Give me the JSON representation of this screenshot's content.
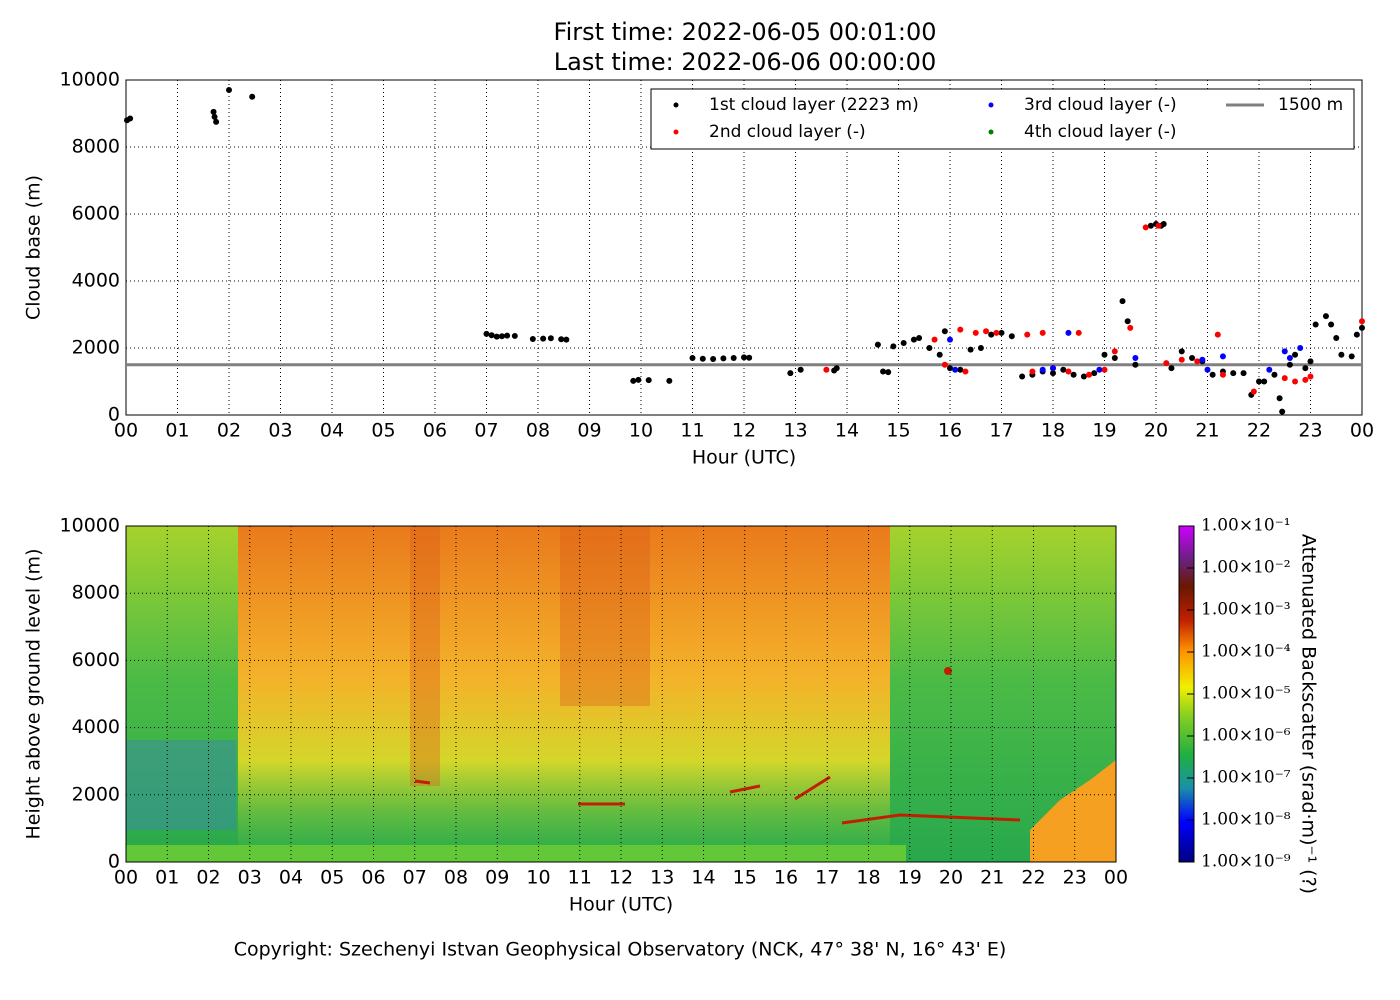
{
  "chart_data": [
    {
      "type": "scatter",
      "title": "First time: 2022-06-05 00:01:00",
      "subtitle": "Last time: 2022-06-06 00:00:00",
      "x_label": "Hour (UTC)",
      "y_label": "Cloud base (m)",
      "xlim": [
        0,
        24
      ],
      "ylim": [
        0,
        10000
      ],
      "xticks": [
        {
          "value": 0,
          "label": "00"
        },
        {
          "value": 1,
          "label": "01"
        },
        {
          "value": 2,
          "label": "02"
        },
        {
          "value": 3,
          "label": "03"
        },
        {
          "value": 4,
          "label": "04"
        },
        {
          "value": 5,
          "label": "05"
        },
        {
          "value": 6,
          "label": "06"
        },
        {
          "value": 7,
          "label": "07"
        },
        {
          "value": 8,
          "label": "08"
        },
        {
          "value": 9,
          "label": "09"
        },
        {
          "value": 10,
          "label": "10"
        },
        {
          "value": 11,
          "label": "11"
        },
        {
          "value": 12,
          "label": "12"
        },
        {
          "value": 13,
          "label": "13"
        },
        {
          "value": 14,
          "label": "14"
        },
        {
          "value": 15,
          "label": "15"
        },
        {
          "value": 16,
          "label": "16"
        },
        {
          "value": 17,
          "label": "17"
        },
        {
          "value": 18,
          "label": "18"
        },
        {
          "value": 19,
          "label": "19"
        },
        {
          "value": 20,
          "label": "20"
        },
        {
          "value": 21,
          "label": "21"
        },
        {
          "value": 22,
          "label": "22"
        },
        {
          "value": 23,
          "label": "23"
        },
        {
          "value": 24,
          "label": "00"
        }
      ],
      "yticks": [
        0,
        2000,
        4000,
        6000,
        8000,
        10000
      ],
      "grid": true,
      "legend": "upper right",
      "series": [
        {
          "name": "1st cloud layer (2223 m)",
          "color": "#000000",
          "x": [
            0.02,
            0.08,
            1.7,
            1.72,
            1.75,
            2.0,
            2.45,
            7.0,
            7.1,
            7.2,
            7.3,
            7.4,
            7.55,
            7.9,
            8.1,
            8.25,
            8.45,
            8.55,
            9.85,
            9.95,
            10.15,
            10.55,
            11.0,
            11.2,
            11.4,
            11.6,
            11.8,
            12.0,
            12.1,
            12.9,
            13.1,
            13.75,
            13.8,
            14.6,
            14.7,
            14.8,
            14.9,
            15.1,
            15.3,
            15.4,
            15.6,
            15.8,
            15.9,
            16.0,
            16.2,
            16.4,
            16.6,
            16.8,
            17.0,
            17.2,
            17.4,
            17.6,
            17.8,
            18.0,
            18.2,
            18.4,
            18.6,
            18.8,
            19.0,
            19.2,
            19.35,
            19.45,
            19.6,
            19.9,
            20.0,
            20.1,
            20.15,
            20.3,
            20.5,
            20.7,
            20.9,
            21.1,
            21.3,
            21.5,
            21.7,
            21.85,
            22.0,
            22.1,
            22.3,
            22.4,
            22.45,
            22.6,
            22.7,
            22.9,
            23.0,
            23.1,
            23.3,
            23.4,
            23.5,
            23.6,
            23.8,
            23.9,
            24.0
          ],
          "values": [
            8800,
            8850,
            9050,
            8900,
            8750,
            9700,
            9500,
            2420,
            2380,
            2340,
            2350,
            2370,
            2360,
            2270,
            2280,
            2290,
            2260,
            2250,
            1020,
            1050,
            1040,
            1020,
            1700,
            1680,
            1670,
            1690,
            1700,
            1720,
            1710,
            1250,
            1350,
            1330,
            1400,
            2100,
            1300,
            1280,
            2050,
            2150,
            2250,
            2300,
            2000,
            1800,
            2500,
            1400,
            1350,
            1950,
            2000,
            2400,
            2450,
            2350,
            1150,
            1200,
            1300,
            1250,
            1350,
            1200,
            1150,
            1250,
            1800,
            1700,
            3400,
            2800,
            1500,
            5650,
            5700,
            5650,
            5700,
            1400,
            1900,
            1700,
            1600,
            1200,
            1300,
            1250,
            1250,
            600,
            1000,
            1000,
            1200,
            500,
            100,
            1500,
            1800,
            1400,
            1600,
            2700,
            2950,
            2700,
            2300,
            1800,
            1750,
            2400,
            2600
          ]
        },
        {
          "name": "2nd cloud layer (-)",
          "color": "#ff0000",
          "x": [
            13.6,
            15.7,
            15.9,
            16.2,
            16.3,
            16.5,
            16.7,
            16.9,
            17.5,
            17.6,
            17.8,
            18.0,
            18.3,
            18.5,
            18.7,
            19.0,
            19.2,
            19.5,
            19.8,
            20.05,
            20.2,
            20.5,
            20.8,
            21.2,
            21.3,
            21.9,
            22.5,
            22.7,
            22.9,
            23.0,
            24.0
          ],
          "values": [
            1350,
            2250,
            1500,
            2550,
            1300,
            2450,
            2500,
            2450,
            2400,
            1300,
            2450,
            1400,
            1300,
            2450,
            1200,
            1350,
            1900,
            2600,
            5600,
            5650,
            1550,
            1650,
            1600,
            2400,
            1200,
            700,
            1100,
            1000,
            1050,
            1150,
            2800
          ]
        },
        {
          "name": "3rd cloud layer (-)",
          "color": "#0000ff",
          "x": [
            16.0,
            16.1,
            17.8,
            18.0,
            18.3,
            18.9,
            19.6,
            20.9,
            21.0,
            21.3,
            22.2,
            22.5,
            22.6,
            22.8
          ],
          "values": [
            2250,
            1350,
            1350,
            1400,
            2450,
            1350,
            1700,
            1650,
            1350,
            1750,
            1350,
            1900,
            1700,
            2000
          ]
        },
        {
          "name": "4th cloud layer (-)",
          "color": "#008000",
          "x": [],
          "values": []
        }
      ],
      "reference_line": {
        "name": "1500 m",
        "value": 1500,
        "color": "#808080"
      }
    },
    {
      "type": "heatmap",
      "x_label": "Hour (UTC)",
      "y_label": "Height above ground level (m)",
      "xlim": [
        0,
        24
      ],
      "ylim": [
        0,
        10000
      ],
      "xticks": [
        {
          "value": 0,
          "label": "00"
        },
        {
          "value": 1,
          "label": "01"
        },
        {
          "value": 2,
          "label": "02"
        },
        {
          "value": 3,
          "label": "03"
        },
        {
          "value": 4,
          "label": "04"
        },
        {
          "value": 5,
          "label": "05"
        },
        {
          "value": 6,
          "label": "06"
        },
        {
          "value": 7,
          "label": "07"
        },
        {
          "value": 8,
          "label": "08"
        },
        {
          "value": 9,
          "label": "09"
        },
        {
          "value": 10,
          "label": "10"
        },
        {
          "value": 11,
          "label": "11"
        },
        {
          "value": 12,
          "label": "12"
        },
        {
          "value": 13,
          "label": "13"
        },
        {
          "value": 14,
          "label": "14"
        },
        {
          "value": 15,
          "label": "15"
        },
        {
          "value": 16,
          "label": "16"
        },
        {
          "value": 17,
          "label": "17"
        },
        {
          "value": 18,
          "label": "18"
        },
        {
          "value": 19,
          "label": "19"
        },
        {
          "value": 20,
          "label": "20"
        },
        {
          "value": 21,
          "label": "21"
        },
        {
          "value": 22,
          "label": "22"
        },
        {
          "value": 23,
          "label": "23"
        },
        {
          "value": 24,
          "label": "00"
        }
      ],
      "yticks": [
        0,
        2000,
        4000,
        6000,
        8000,
        10000
      ],
      "grid": true,
      "colorbar": {
        "label": "Attenuated Backscatter (srad·m)⁻¹ (?)",
        "scale": "log",
        "lim": [
          1e-09,
          0.1
        ],
        "ticks": [
          {
            "value": 1e-09,
            "label": "1.00×10⁻⁹"
          },
          {
            "value": 1e-08,
            "label": "1.00×10⁻⁸"
          },
          {
            "value": 1e-07,
            "label": "1.00×10⁻⁷"
          },
          {
            "value": 1e-06,
            "label": "1.00×10⁻⁶"
          },
          {
            "value": 1e-05,
            "label": "1.00×10⁻⁵"
          },
          {
            "value": 0.0001,
            "label": "1.00×10⁻⁴"
          },
          {
            "value": 0.001,
            "label": "1.00×10⁻³"
          },
          {
            "value": 0.01,
            "label": "1.00×10⁻²"
          },
          {
            "value": 0.1,
            "label": "1.00×10⁻¹"
          }
        ]
      }
    }
  ],
  "footer": "Copyright: Szechenyi Istvan Geophysical Observatory (NCK, 47° 38' N, 16° 43' E)"
}
